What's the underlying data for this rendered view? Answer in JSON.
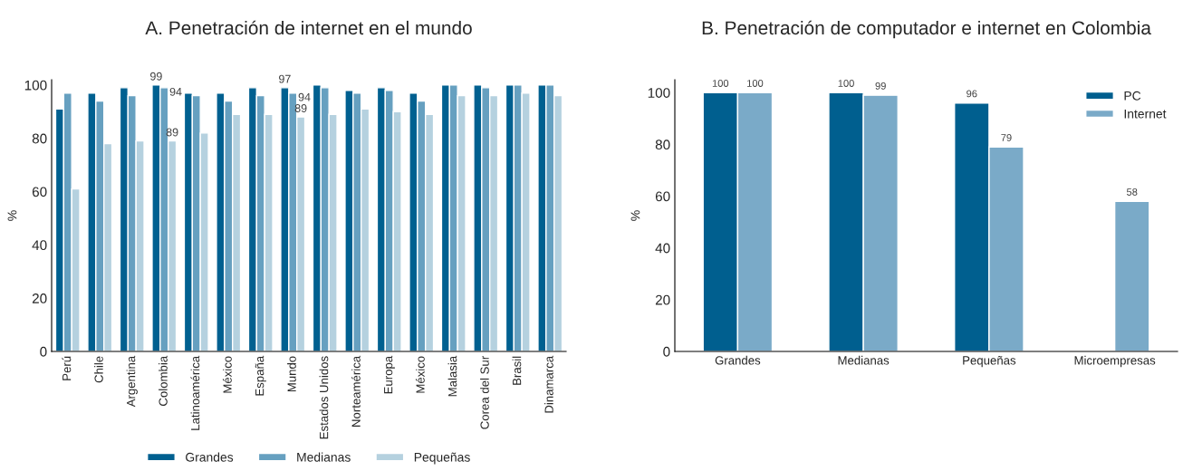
{
  "chart_data": [
    {
      "type": "bar",
      "title": "A. Penetración de internet en el mundo",
      "ylabel": "%",
      "categories": [
        "Perú",
        "Chile",
        "Argentina",
        "Colombia",
        "Latinoamérica",
        "México",
        "España",
        "Mundo",
        "Estados Unidos",
        "Norteamérica",
        "Europa",
        "México",
        "Malasia",
        "Corea del Sur",
        "Brasil",
        "Dinamarca"
      ],
      "series": [
        {
          "name": "Grandes",
          "color": "#006090",
          "values": [
            91,
            97,
            99,
            100,
            97,
            97,
            99,
            99,
            100,
            98,
            99,
            97,
            100,
            100,
            100,
            100
          ]
        },
        {
          "name": "Medianas",
          "color": "#66a0c0",
          "values": [
            97,
            94,
            96,
            99,
            96,
            94,
            96,
            97,
            99,
            97,
            98,
            94,
            100,
            99,
            100,
            100
          ]
        },
        {
          "name": "Pequeñas",
          "color": "#b5d1df",
          "values": [
            61,
            78,
            79,
            79,
            82,
            89,
            89,
            88,
            89,
            91,
            90,
            89,
            96,
            96,
            97,
            96
          ]
        }
      ],
      "annotations": [
        {
          "text": "99",
          "x": "Colombia",
          "y": 100
        },
        {
          "text": "94",
          "x": "Colombia",
          "y": 99
        },
        {
          "text": "89",
          "x": "Colombia",
          "y": 79
        },
        {
          "text": "97",
          "x": "Mundo",
          "y": 99
        },
        {
          "text": "94",
          "x": "Mundo",
          "y": 97
        },
        {
          "text": "89",
          "x": "Mundo",
          "y": 88
        }
      ],
      "ylim": [
        0,
        102
      ],
      "yticks": [
        0,
        20,
        40,
        60,
        80,
        100
      ],
      "grid": false,
      "legend": "bottom"
    },
    {
      "type": "bar",
      "title": "B. Penetración de computador e internet en Colombia",
      "ylabel": "%",
      "categories": [
        "Grandes",
        "Medianas",
        "Pequeñas",
        "Microempresas"
      ],
      "series": [
        {
          "name": "PC",
          "color": "#005f8f",
          "values": [
            100,
            100,
            96,
            null
          ]
        },
        {
          "name": "Internet",
          "color": "#7aaac8",
          "values": [
            100,
            99,
            79,
            58
          ]
        }
      ],
      "data_labels": true,
      "ylim": [
        0,
        105
      ],
      "yticks": [
        0,
        20,
        40,
        60,
        80,
        100
      ],
      "grid": false,
      "legend": "top right"
    }
  ]
}
